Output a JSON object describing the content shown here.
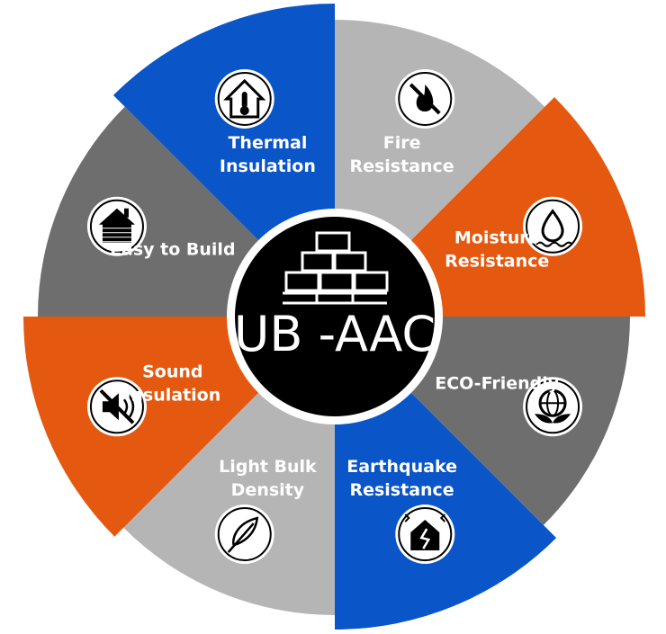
{
  "hub": {
    "title": "UB -AAC",
    "icon": "brick-stack-icon"
  },
  "colors": {
    "blue": "#0a55c8",
    "light_gray": "#b5b5b5",
    "orange": "#e4590f",
    "dark_gray": "#6e6e6e",
    "hub": "#000000"
  },
  "segments": [
    {
      "id": "fire-resistance",
      "lines": [
        "Fire",
        "Resistance"
      ],
      "icon": "no-fire-icon",
      "color": "light_gray"
    },
    {
      "id": "moisture-resistance",
      "lines": [
        "Moisture",
        "Resistance"
      ],
      "icon": "water-drop-icon",
      "color": "orange"
    },
    {
      "id": "eco-friendly",
      "lines": [
        "ECO-Friendly"
      ],
      "icon": "eco-globe-icon",
      "color": "dark_gray"
    },
    {
      "id": "earthquake-resistance",
      "lines": [
        "Earthquake",
        "Resistance"
      ],
      "icon": "earthquake-icon",
      "color": "blue"
    },
    {
      "id": "light-bulk-density",
      "lines": [
        "Light Bulk",
        "Density"
      ],
      "icon": "feather-icon",
      "color": "light_gray"
    },
    {
      "id": "sound-insulation",
      "lines": [
        "Sound",
        "Insulation"
      ],
      "icon": "mute-icon",
      "color": "orange"
    },
    {
      "id": "easy-to-build",
      "lines": [
        "Easy to Build"
      ],
      "icon": "brick-house-icon",
      "color": "dark_gray"
    },
    {
      "id": "thermal-insulation",
      "lines": [
        "Thermal",
        "Insulation"
      ],
      "icon": "thermometer-house-icon",
      "color": "blue"
    }
  ]
}
